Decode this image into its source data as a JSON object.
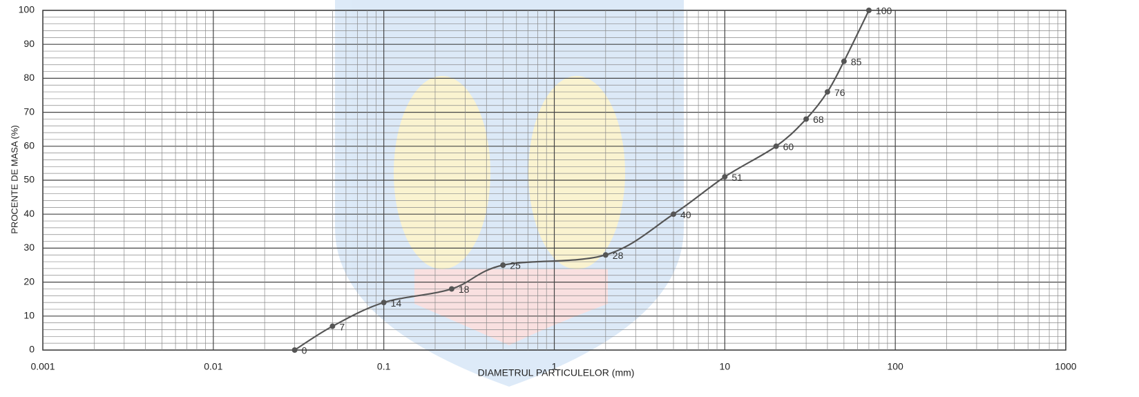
{
  "chart_data": {
    "type": "line",
    "x_label": "DIAMETRUL PARTICULELOR (mm)",
    "y_label": "PROCENTE DE MASA (%)",
    "x": [
      0.03,
      0.05,
      0.1,
      0.25,
      0.5,
      2,
      5,
      10,
      20,
      30,
      40,
      50,
      70
    ],
    "values": [
      0,
      7,
      14,
      18,
      25,
      28,
      40,
      51,
      60,
      68,
      76,
      85,
      100
    ],
    "color": "#555555",
    "xscale": "log",
    "xlim": [
      0.001,
      1000
    ],
    "xticks": [
      0.001,
      0.01,
      0.1,
      1,
      10,
      100,
      1000
    ],
    "ylim": [
      0,
      100
    ],
    "yticks": [
      0,
      10,
      20,
      30,
      40,
      50,
      60,
      70,
      80,
      90,
      100
    ],
    "grid": true
  }
}
